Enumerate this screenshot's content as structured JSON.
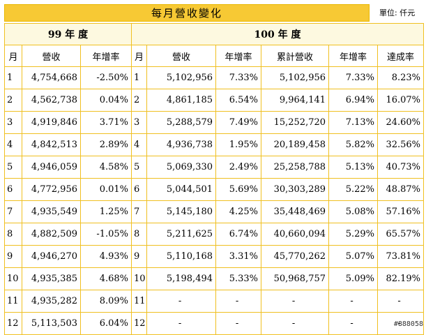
{
  "title": "每月營收變化",
  "unit": "單位: 仟元",
  "watermark": "#888058",
  "year_left": "99 年 度",
  "year_right": "100 年 度",
  "headers": {
    "month": "月",
    "revenue": "營收",
    "yoy": "年增率",
    "cumulative": "累計營收",
    "achievement": "達成率"
  },
  "rows": [
    {
      "m1": "1",
      "r99": "4,754,668",
      "y99": "-2.50%",
      "m2": "1",
      "r100": "5,102,956",
      "y100": "7.33%",
      "cum": "5,102,956",
      "cy": "7.33%",
      "ach": "8.23%"
    },
    {
      "m1": "2",
      "r99": "4,562,738",
      "y99": "0.04%",
      "m2": "2",
      "r100": "4,861,185",
      "y100": "6.54%",
      "cum": "9,964,141",
      "cy": "6.94%",
      "ach": "16.07%"
    },
    {
      "m1": "3",
      "r99": "4,919,846",
      "y99": "3.71%",
      "m2": "3",
      "r100": "5,288,579",
      "y100": "7.49%",
      "cum": "15,252,720",
      "cy": "7.13%",
      "ach": "24.60%"
    },
    {
      "m1": "4",
      "r99": "4,842,513",
      "y99": "2.89%",
      "m2": "4",
      "r100": "4,936,738",
      "y100": "1.95%",
      "cum": "20,189,458",
      "cy": "5.82%",
      "ach": "32.56%"
    },
    {
      "m1": "5",
      "r99": "4,946,059",
      "y99": "4.58%",
      "m2": "5",
      "r100": "5,069,330",
      "y100": "2.49%",
      "cum": "25,258,788",
      "cy": "5.13%",
      "ach": "40.73%"
    },
    {
      "m1": "6",
      "r99": "4,772,956",
      "y99": "0.01%",
      "m2": "6",
      "r100": "5,044,501",
      "y100": "5.69%",
      "cum": "30,303,289",
      "cy": "5.22%",
      "ach": "48.87%"
    },
    {
      "m1": "7",
      "r99": "4,935,549",
      "y99": "1.25%",
      "m2": "7",
      "r100": "5,145,180",
      "y100": "4.25%",
      "cum": "35,448,469",
      "cy": "5.08%",
      "ach": "57.16%"
    },
    {
      "m1": "8",
      "r99": "4,882,509",
      "y99": "-1.05%",
      "m2": "8",
      "r100": "5,211,625",
      "y100": "6.74%",
      "cum": "40,660,094",
      "cy": "5.29%",
      "ach": "65.57%"
    },
    {
      "m1": "9",
      "r99": "4,946,270",
      "y99": "4.93%",
      "m2": "9",
      "r100": "5,110,168",
      "y100": "3.31%",
      "cum": "45,770,262",
      "cy": "5.07%",
      "ach": "73.81%"
    },
    {
      "m1": "10",
      "r99": "4,935,385",
      "y99": "4.68%",
      "m2": "10",
      "r100": "5,198,494",
      "y100": "5.33%",
      "cum": "50,968,757",
      "cy": "5.09%",
      "ach": "82.19%"
    },
    {
      "m1": "11",
      "r99": "4,935,282",
      "y99": "8.09%",
      "m2": "11",
      "r100": "-",
      "y100": "-",
      "cum": "-",
      "cy": "-",
      "ach": "-"
    },
    {
      "m1": "12",
      "r99": "5,113,503",
      "y99": "6.04%",
      "m2": "12",
      "r100": "-",
      "y100": "-",
      "cum": "-",
      "cy": "-",
      "ach": "-"
    }
  ]
}
